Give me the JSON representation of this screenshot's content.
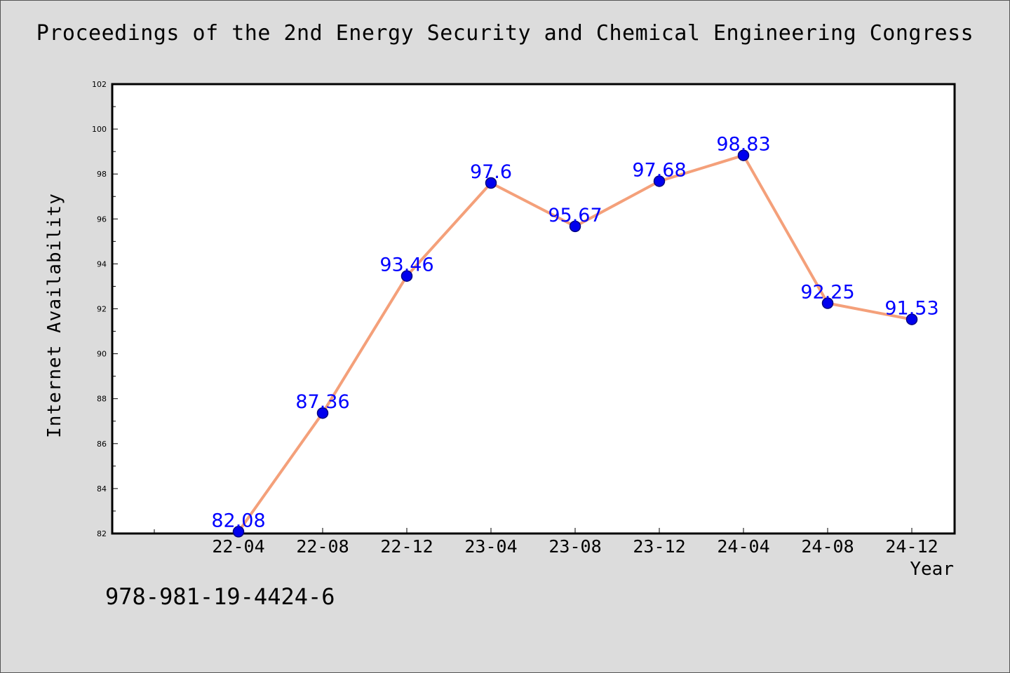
{
  "chart_data": {
    "type": "line",
    "title": "Proceedings of the 2nd Energy Security and Chemical Engineering Congress",
    "xlabel": "Year",
    "ylabel": "Internet Availability",
    "categories": [
      "22-04",
      "22-08",
      "22-12",
      "23-04",
      "23-08",
      "23-12",
      "24-04",
      "24-08",
      "24-12"
    ],
    "series": [
      {
        "values": [
          82.08,
          87.36,
          93.46,
          97.6,
          95.67,
          97.68,
          98.83,
          92.25,
          91.53
        ],
        "data_labels": [
          "82.08",
          "87.36",
          "93.46",
          "97.6",
          "95.67",
          "97.68",
          "98.83",
          "92.25",
          "91.53"
        ]
      }
    ],
    "ylim": [
      82,
      102
    ],
    "yticks": [
      82,
      84,
      86,
      88,
      90,
      92,
      94,
      96,
      98,
      100,
      102
    ],
    "grid": false,
    "colors": {
      "line": "#f4a07a",
      "marker": "#0000ee",
      "marker_edge": "#000080",
      "data_label": "#0000ff",
      "background": "#dcdcdc",
      "plot_background": "#ffffff"
    }
  },
  "footer": {
    "isbn": "978-981-19-4424-6"
  }
}
